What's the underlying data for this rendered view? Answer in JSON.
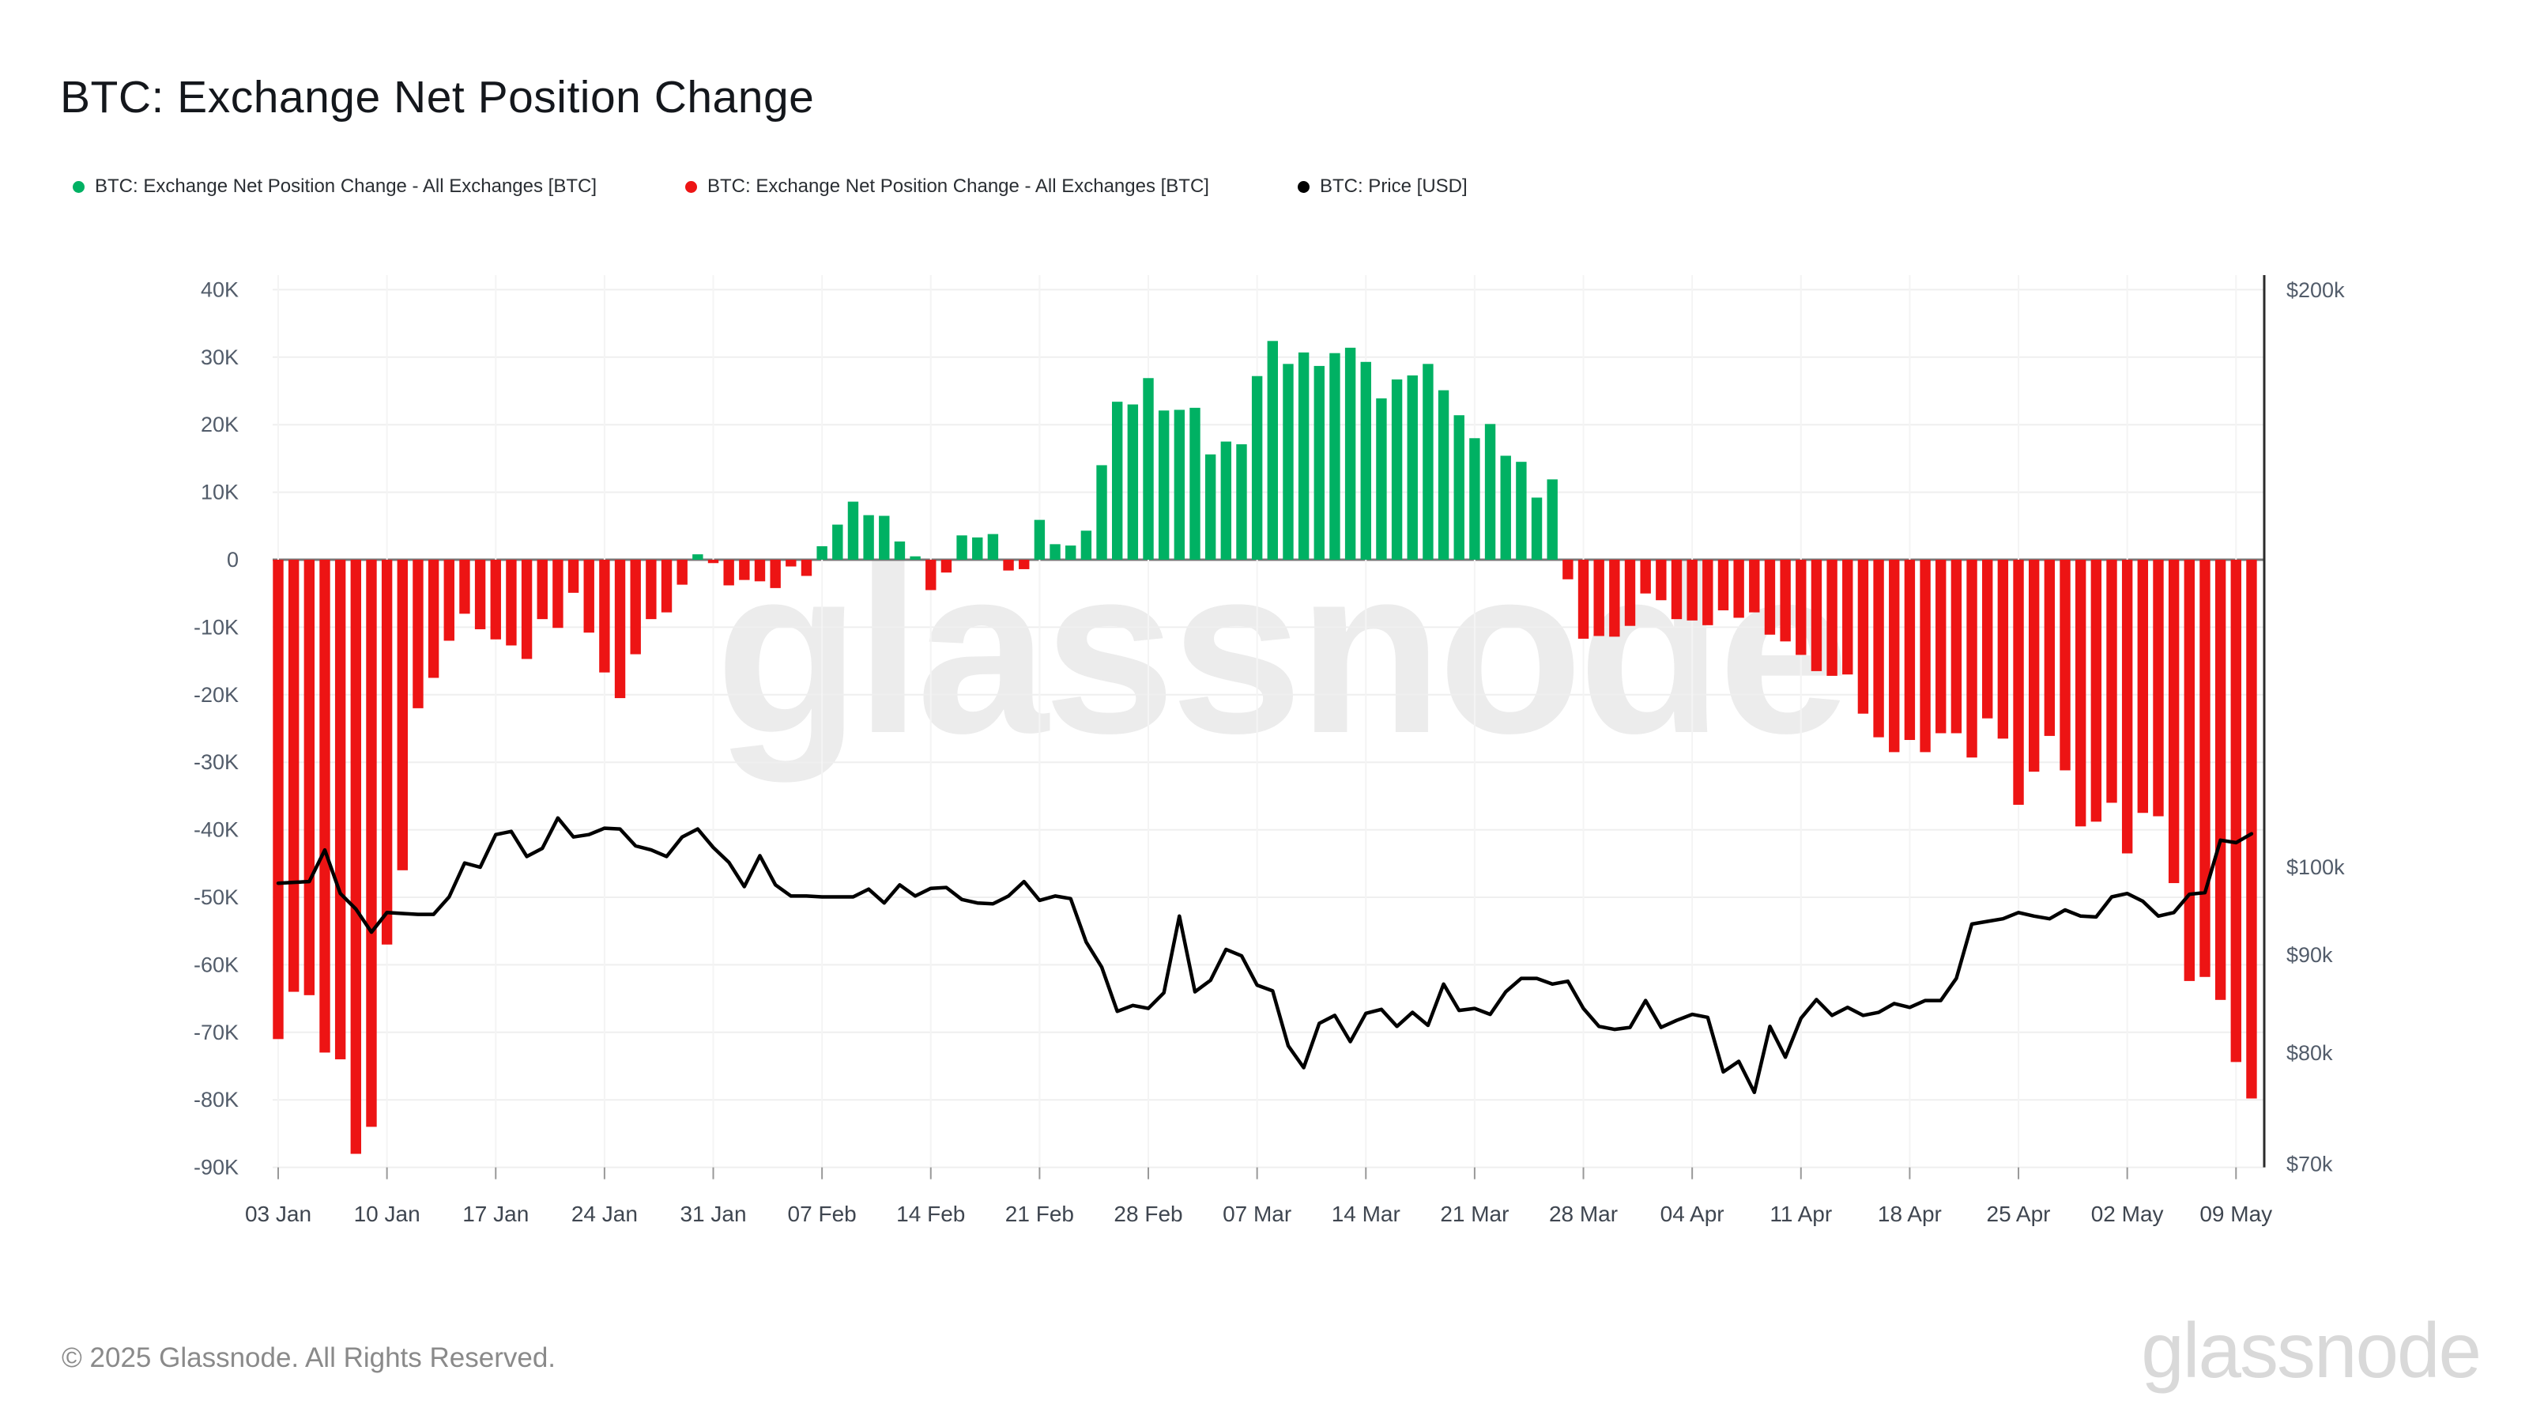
{
  "header": {
    "title": "BTC: Exchange Net Position Change"
  },
  "legend": [
    {
      "label": "BTC: Exchange Net Position Change - All Exchanges [BTC]",
      "color": "#00b163",
      "marker": "circle-icon"
    },
    {
      "label": "BTC: Exchange Net Position Change - All Exchanges [BTC]",
      "color": "#ed1414",
      "marker": "circle-icon"
    },
    {
      "label": "BTC: Price [USD]",
      "color": "#000000",
      "marker": "circle-icon"
    }
  ],
  "watermark": "glassnode",
  "footer": {
    "copyright": "© 2025 Glassnode. All Rights Reserved.",
    "logo": "glassnode"
  },
  "colors": {
    "positive_bar": "#00b163",
    "negative_bar": "#ed1414",
    "price_line": "#000000",
    "gridline": "#efefef",
    "zero_line": "#777777",
    "price_axis_line": "#2b2b2b",
    "tick_mark": "#999999",
    "y_tick_text": "#525c6a",
    "x_tick_text": "#3f4650",
    "background": "#ffffff"
  },
  "chart_data": {
    "type": "bar",
    "subtype": "daily bars (left axis, linear) + price line (right axis, log)",
    "title": "BTC: Exchange Net Position Change",
    "start_date": "2025-01-03",
    "frequency": "daily",
    "grid": "on",
    "legend_position": "top",
    "left_axis": {
      "units": "thousand BTC",
      "ylim": [
        -90,
        40
      ],
      "ticks": [
        {
          "label": "40K",
          "value": 40
        },
        {
          "label": "30K",
          "value": 30
        },
        {
          "label": "20K",
          "value": 20
        },
        {
          "label": "10K",
          "value": 10
        },
        {
          "label": "0",
          "value": 0
        },
        {
          "label": "-10K",
          "value": -10
        },
        {
          "label": "-20K",
          "value": -20
        },
        {
          "label": "-30K",
          "value": -30
        },
        {
          "label": "-40K",
          "value": -40
        },
        {
          "label": "-50K",
          "value": -50
        },
        {
          "label": "-60K",
          "value": -60
        },
        {
          "label": "-70K",
          "value": -70
        },
        {
          "label": "-80K",
          "value": -80
        },
        {
          "label": "-90K",
          "value": -90
        }
      ]
    },
    "right_axis": {
      "units": "USD",
      "scale": "log",
      "ticks": [
        {
          "label": "$200k",
          "value": 200
        },
        {
          "label": "$100k",
          "value": 100
        },
        {
          "label": "$90k",
          "value": 90
        },
        {
          "label": "$80k",
          "value": 80
        },
        {
          "label": "$70k",
          "value": 70
        }
      ]
    },
    "x_ticks": {
      "labels": [
        "03 Jan",
        "10 Jan",
        "17 Jan",
        "24 Jan",
        "31 Jan",
        "07 Feb",
        "14 Feb",
        "21 Feb",
        "28 Feb",
        "07 Mar",
        "14 Mar",
        "21 Mar",
        "28 Mar",
        "04 Apr",
        "11 Apr",
        "18 Apr",
        "25 Apr",
        "02 May",
        "09 May"
      ],
      "indices": [
        0,
        7,
        14,
        21,
        28,
        35,
        42,
        49,
        56,
        63,
        70,
        77,
        84,
        91,
        98,
        105,
        112,
        119,
        126
      ]
    },
    "series": [
      {
        "name": "BTC: Exchange Net Position Change - All Exchanges [BTC]",
        "type": "bar",
        "axis": "left",
        "units": "thousand BTC",
        "values": [
          -71,
          -64,
          -64.5,
          -73,
          -74,
          -88,
          -84,
          -57,
          -46,
          -22,
          -17.5,
          -12,
          -8,
          -10.3,
          -11.8,
          -12.7,
          -14.7,
          -8.8,
          -10.1,
          -4.9,
          -10.8,
          -16.7,
          -20.5,
          -14,
          -8.8,
          -7.8,
          -3.7,
          0.8,
          -0.5,
          -3.8,
          -3,
          -3.2,
          -4.2,
          -1,
          -2.4,
          2,
          5.2,
          8.6,
          6.6,
          6.5,
          2.7,
          0.5,
          -4.5,
          -1.9,
          3.6,
          3.3,
          3.8,
          -1.6,
          -1.4,
          5.9,
          2.3,
          2.1,
          4.3,
          14,
          23.4,
          23,
          26.9,
          22.1,
          22.2,
          22.5,
          15.6,
          17.5,
          17.1,
          27.2,
          32.4,
          29,
          30.7,
          28.7,
          30.6,
          31.4,
          29.3,
          23.9,
          26.7,
          27.3,
          29,
          25.1,
          21.4,
          18,
          20.1,
          15.4,
          14.5,
          9.2,
          11.9,
          -2.9,
          -11.7,
          -11.3,
          -11.4,
          -9.8,
          -5,
          -6,
          -8.8,
          -9,
          -9.7,
          -7.5,
          -8.6,
          -7.8,
          -11.1,
          -12.1,
          -14.1,
          -16.5,
          -17.2,
          -17,
          -22.8,
          -26.3,
          -28.5,
          -26.7,
          -28.5,
          -25.7,
          -25.7,
          -29.3,
          -23.5,
          -26.5,
          -36.3,
          -31.4,
          -26.1,
          -31.2,
          -39.5,
          -38.8,
          -36,
          -43.5,
          -37.5,
          -38,
          -47.9,
          -62.4,
          -61.8,
          -65.2,
          -74.4,
          -79.8
        ]
      },
      {
        "name": "BTC: Price [USD]",
        "type": "line",
        "axis": "right",
        "units": "thousand USD",
        "values": [
          98.1,
          98.2,
          98.3,
          102.1,
          96.9,
          95.1,
          92.5,
          94.7,
          94.6,
          94.5,
          94.5,
          96.5,
          100.5,
          100,
          104,
          104.4,
          101.3,
          102.3,
          106.1,
          103.7,
          104,
          104.8,
          104.7,
          102.6,
          102.1,
          101.3,
          103.7,
          104.7,
          102.4,
          100.6,
          97.7,
          101.4,
          97.9,
          96.6,
          96.6,
          96.5,
          96.5,
          96.5,
          97.4,
          95.8,
          97.9,
          96.6,
          97.5,
          97.6,
          96.2,
          95.8,
          95.7,
          96.6,
          98.3,
          96.1,
          96.6,
          96.3,
          91.4,
          88.7,
          84.1,
          84.7,
          84.4,
          86,
          94.3,
          86.1,
          87.3,
          90.6,
          89.9,
          86.8,
          86.2,
          80.7,
          78.6,
          82.9,
          83.7,
          81.1,
          83.9,
          84.3,
          82.6,
          84,
          82.7,
          86.9,
          84.2,
          84.4,
          83.8,
          86.1,
          87.5,
          87.5,
          86.9,
          87.2,
          84.4,
          82.6,
          82.3,
          82.5,
          85.2,
          82.5,
          83.2,
          83.8,
          83.5,
          78.2,
          79.2,
          76.3,
          82.6,
          79.6,
          83.4,
          85.3,
          83.7,
          84.5,
          83.7,
          84,
          84.9,
          84.5,
          85.2,
          85.2,
          87.5,
          93.4,
          93.7,
          94,
          94.7,
          94.3,
          94,
          95,
          94.3,
          94.2,
          96.5,
          96.9,
          96,
          94.3,
          94.7,
          96.8,
          97,
          103.3,
          103,
          104.1
        ]
      }
    ]
  }
}
